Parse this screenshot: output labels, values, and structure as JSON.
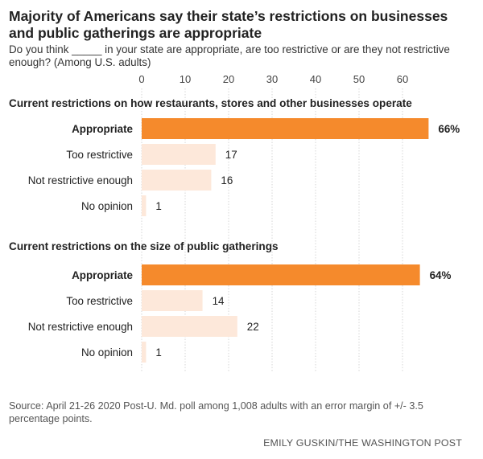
{
  "title": "Majority of Americans say their state’s restrictions on businesses and public gatherings are appropriate",
  "subtitle": "Do you think _____ in your state are appropriate, are too restrictive or are they not restrictive enough? (Among U.S. adults)",
  "source": "Source: April 21-26 2020 Post-U. Md. poll among 1,008 adults with an error margin of +/- 3.5 percentage points.",
  "credit": "EMILY GUSKIN/THE WASHINGTON POST",
  "colors": {
    "highlight": "#f58a2c",
    "muted": "#fde8da",
    "text": "#222222",
    "gridline": "#d6d6d6"
  },
  "chart_data": {
    "type": "bar",
    "orientation": "horizontal",
    "xlim": [
      0,
      70
    ],
    "x_ticks": [
      0,
      10,
      20,
      30,
      40,
      50,
      60
    ],
    "grid": true,
    "panels": [
      {
        "heading": "Current restrictions on how restaurants, stores and other businesses operate",
        "categories": [
          "Appropriate",
          "Too restrictive",
          "Not restrictive enough",
          "No opinion"
        ],
        "values": [
          66,
          17,
          16,
          1
        ],
        "value_labels": [
          "66%",
          "17",
          "16",
          "1"
        ]
      },
      {
        "heading": "Current restrictions on the size of public gatherings",
        "categories": [
          "Appropriate",
          "Too restrictive",
          "Not restrictive enough",
          "No opinion"
        ],
        "values": [
          64,
          14,
          22,
          1
        ],
        "value_labels": [
          "64%",
          "14",
          "22",
          "1"
        ]
      }
    ]
  }
}
